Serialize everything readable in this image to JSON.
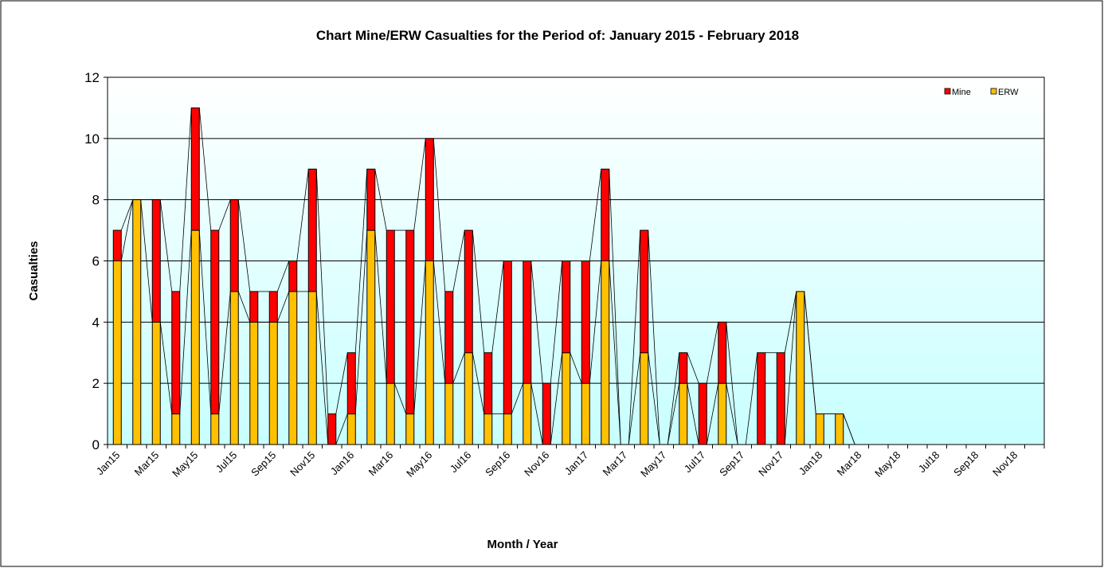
{
  "chart_data": {
    "type": "stacked-bar",
    "title": "Chart Mine/ERW Casualties for the Period of: January 2015 - February 2018",
    "x_label": "Month / Year",
    "y_label": "Casualties",
    "categories": [
      "Jan15",
      null,
      "Mar15",
      null,
      "May15",
      null,
      "Jul15",
      null,
      "Sep15",
      null,
      "Nov15",
      null,
      "Jan16",
      null,
      "Mar16",
      null,
      "May16",
      null,
      "Jul16",
      null,
      "Sep16",
      null,
      "Nov16",
      null,
      "Jan17",
      null,
      "Mar17",
      null,
      "May17",
      null,
      "Jul17",
      null,
      "Sep17",
      null,
      "Nov17",
      null,
      "Jan18",
      null,
      "Mar18",
      null,
      "May18",
      null,
      "Jul18",
      null,
      "Sep18",
      null,
      "Nov18",
      null
    ],
    "series": [
      {
        "name": "ERW",
        "color": "#ffc000",
        "values": [
          6,
          8,
          4,
          1,
          7,
          1,
          5,
          4,
          4,
          5,
          5,
          0,
          1,
          7,
          2,
          1,
          6,
          2,
          3,
          1,
          1,
          2,
          0,
          3,
          2,
          6,
          0,
          3,
          0,
          2,
          0,
          2,
          0,
          0,
          0,
          5,
          1,
          1,
          0,
          null,
          null,
          null,
          null,
          null,
          null,
          null,
          null,
          null
        ]
      },
      {
        "name": "Mine",
        "color": "#ff0000",
        "values": [
          1,
          0,
          4,
          4,
          4,
          6,
          3,
          1,
          1,
          1,
          4,
          1,
          2,
          2,
          5,
          6,
          4,
          3,
          4,
          2,
          5,
          4,
          2,
          3,
          4,
          3,
          0,
          4,
          0,
          1,
          2,
          2,
          0,
          3,
          3,
          0,
          0,
          0,
          0,
          null,
          null,
          null,
          null,
          null,
          null,
          null,
          null,
          null
        ]
      }
    ],
    "ylim": [
      0,
      12
    ],
    "yticks": [
      0,
      2,
      4,
      6,
      8,
      10,
      12
    ],
    "grid": true,
    "legend": "top-right"
  }
}
